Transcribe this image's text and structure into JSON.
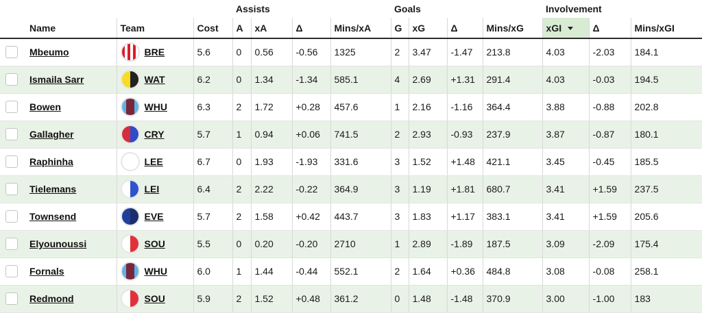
{
  "groups": {
    "assists": "Assists",
    "goals": "Goals",
    "involvement": "Involvement"
  },
  "columns": {
    "name": "Name",
    "team": "Team",
    "cost": "Cost",
    "a": "A",
    "xa": "xA",
    "delta_a": "Δ",
    "mins_xa": "Mins/xA",
    "g": "G",
    "xg": "xG",
    "delta_g": "Δ",
    "mins_xg": "Mins/xG",
    "xgi": "xGI",
    "delta_gi": "Δ",
    "mins_xgi": "Mins/xGI"
  },
  "sort": {
    "column": "xgi",
    "direction": "desc",
    "icon": "sort-desc-icon"
  },
  "team_badges": {
    "BRE": {
      "icon": "brentford-badge-icon",
      "colors": [
        "#d91e2a",
        "#ffffff"
      ]
    },
    "WAT": {
      "icon": "watford-badge-icon",
      "colors": [
        "#f6dc23",
        "#222222"
      ]
    },
    "WHU": {
      "icon": "west-ham-badge-icon",
      "colors": [
        "#7a263a",
        "#5fb3e4"
      ]
    },
    "CRY": {
      "icon": "crystal-palace-badge-icon",
      "colors": [
        "#d62e3c",
        "#2f4bc6"
      ]
    },
    "LEE": {
      "icon": "leeds-badge-icon",
      "colors": [
        "#ffffff",
        "#ffffff"
      ]
    },
    "LEI": {
      "icon": "leicester-badge-icon",
      "colors": [
        "#ffffff",
        "#2f54cc"
      ]
    },
    "EVE": {
      "icon": "everton-badge-icon",
      "colors": [
        "#1f3f9a",
        "#1b2d6b"
      ]
    },
    "SOU": {
      "icon": "southampton-badge-icon",
      "colors": [
        "#ffffff",
        "#e0313a"
      ]
    }
  },
  "rows": [
    {
      "name": "Mbeumo",
      "team": "BRE",
      "cost": "5.6",
      "a": "0",
      "xa": "0.56",
      "delta_a": "-0.56",
      "mins_xa": "1325",
      "g": "2",
      "xg": "3.47",
      "delta_g": "-1.47",
      "mins_xg": "213.8",
      "xgi": "4.03",
      "delta_gi": "-2.03",
      "mins_xgi": "184.1"
    },
    {
      "name": "Ismaila Sarr",
      "team": "WAT",
      "cost": "6.2",
      "a": "0",
      "xa": "1.34",
      "delta_a": "-1.34",
      "mins_xa": "585.1",
      "g": "4",
      "xg": "2.69",
      "delta_g": "+1.31",
      "mins_xg": "291.4",
      "xgi": "4.03",
      "delta_gi": "-0.03",
      "mins_xgi": "194.5"
    },
    {
      "name": "Bowen",
      "team": "WHU",
      "cost": "6.3",
      "a": "2",
      "xa": "1.72",
      "delta_a": "+0.28",
      "mins_xa": "457.6",
      "g": "1",
      "xg": "2.16",
      "delta_g": "-1.16",
      "mins_xg": "364.4",
      "xgi": "3.88",
      "delta_gi": "-0.88",
      "mins_xgi": "202.8"
    },
    {
      "name": "Gallagher",
      "team": "CRY",
      "cost": "5.7",
      "a": "1",
      "xa": "0.94",
      "delta_a": "+0.06",
      "mins_xa": "741.5",
      "g": "2",
      "xg": "2.93",
      "delta_g": "-0.93",
      "mins_xg": "237.9",
      "xgi": "3.87",
      "delta_gi": "-0.87",
      "mins_xgi": "180.1"
    },
    {
      "name": "Raphinha",
      "team": "LEE",
      "cost": "6.7",
      "a": "0",
      "xa": "1.93",
      "delta_a": "-1.93",
      "mins_xa": "331.6",
      "g": "3",
      "xg": "1.52",
      "delta_g": "+1.48",
      "mins_xg": "421.1",
      "xgi": "3.45",
      "delta_gi": "-0.45",
      "mins_xgi": "185.5"
    },
    {
      "name": "Tielemans",
      "team": "LEI",
      "cost": "6.4",
      "a": "2",
      "xa": "2.22",
      "delta_a": "-0.22",
      "mins_xa": "364.9",
      "g": "3",
      "xg": "1.19",
      "delta_g": "+1.81",
      "mins_xg": "680.7",
      "xgi": "3.41",
      "delta_gi": "+1.59",
      "mins_xgi": "237.5"
    },
    {
      "name": "Townsend",
      "team": "EVE",
      "cost": "5.7",
      "a": "2",
      "xa": "1.58",
      "delta_a": "+0.42",
      "mins_xa": "443.7",
      "g": "3",
      "xg": "1.83",
      "delta_g": "+1.17",
      "mins_xg": "383.1",
      "xgi": "3.41",
      "delta_gi": "+1.59",
      "mins_xgi": "205.6"
    },
    {
      "name": "Elyounoussi",
      "team": "SOU",
      "cost": "5.5",
      "a": "0",
      "xa": "0.20",
      "delta_a": "-0.20",
      "mins_xa": "2710",
      "g": "1",
      "xg": "2.89",
      "delta_g": "-1.89",
      "mins_xg": "187.5",
      "xgi": "3.09",
      "delta_gi": "-2.09",
      "mins_xgi": "175.4"
    },
    {
      "name": "Fornals",
      "team": "WHU",
      "cost": "6.0",
      "a": "1",
      "xa": "1.44",
      "delta_a": "-0.44",
      "mins_xa": "552.1",
      "g": "2",
      "xg": "1.64",
      "delta_g": "+0.36",
      "mins_xg": "484.8",
      "xgi": "3.08",
      "delta_gi": "-0.08",
      "mins_xgi": "258.1"
    },
    {
      "name": "Redmond",
      "team": "SOU",
      "cost": "5.9",
      "a": "2",
      "xa": "1.52",
      "delta_a": "+0.48",
      "mins_xa": "361.2",
      "g": "0",
      "xg": "1.48",
      "delta_g": "-1.48",
      "mins_xg": "370.9",
      "xgi": "3.00",
      "delta_gi": "-1.00",
      "mins_xgi": "183"
    }
  ]
}
